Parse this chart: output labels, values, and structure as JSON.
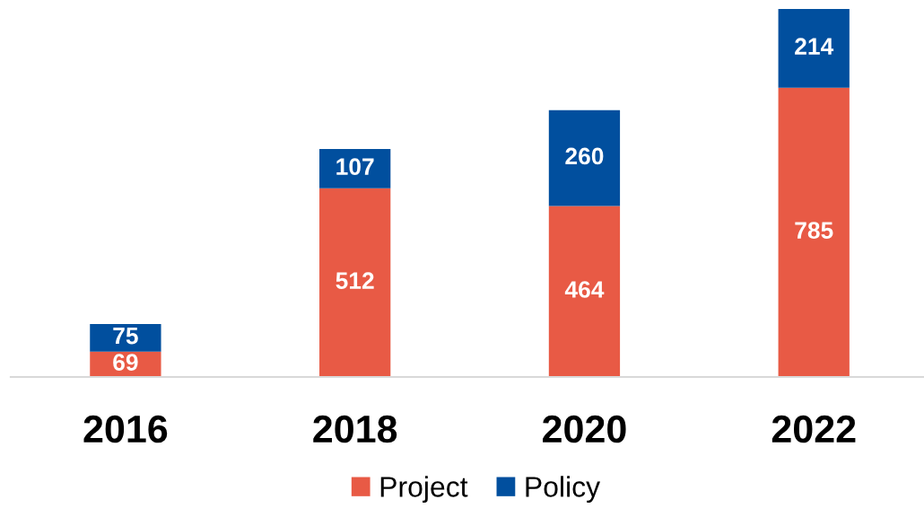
{
  "chart_data": {
    "type": "bar",
    "categories": [
      "2016",
      "2018",
      "2020",
      "2022"
    ],
    "stacked": true,
    "series": [
      {
        "name": "Project",
        "color": "#e85a45",
        "values": [
          69,
          512,
          464,
          785
        ]
      },
      {
        "name": "Policy",
        "color": "#014f9e",
        "values": [
          75,
          107,
          260,
          214
        ]
      }
    ],
    "data_labels": true,
    "legend": "bottom",
    "grid": false,
    "tick_labels": "x"
  }
}
